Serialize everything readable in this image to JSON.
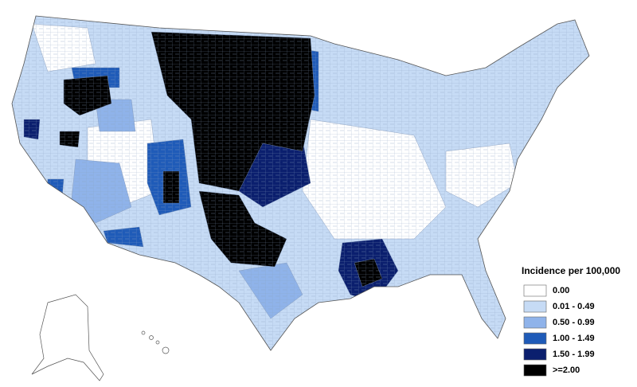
{
  "legend": {
    "title": "Incidence per 100,000",
    "items": [
      {
        "label": "0.00",
        "color": "#ffffff"
      },
      {
        "label": "0.01 - 0.49",
        "color": "#c6dbf5"
      },
      {
        "label": "0.50 - 0.99",
        "color": "#8fb3ea"
      },
      {
        "label": "1.00 - 1.49",
        "color": "#1f5bb8"
      },
      {
        "label": "1.50 - 1.99",
        "color": "#0b1f6e"
      },
      {
        "label": ">=2.00",
        "color": "#000000"
      }
    ]
  }
}
